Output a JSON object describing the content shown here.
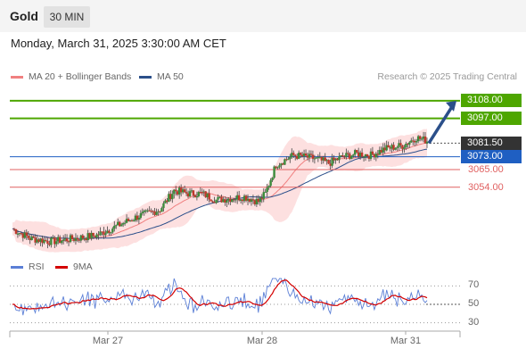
{
  "header": {
    "symbol": "Gold",
    "interval": "30 MIN",
    "datetime": "Monday, March 31, 2025 3:30:00 AM CET"
  },
  "legend": {
    "ma20_label": "MA 20 + Bollinger Bands",
    "ma50_label": "MA 50",
    "credit": "Research © 2025 Trading Central",
    "ma20_color": "#f08080",
    "ma50_color": "#2b4f8a"
  },
  "rsi_legend": {
    "rsi_label": "RSI",
    "ma_label": "9MA",
    "rsi_color": "#5b7fd6",
    "ma_color": "#d40000"
  },
  "chart_data": {
    "type": "candlestick",
    "x_ticks": [
      "Mar 27",
      "Mar 28",
      "Mar 31"
    ],
    "price_range": [
      3012,
      3118
    ],
    "levels": [
      {
        "value": "3108.00",
        "price": 3108,
        "kind": "resistance",
        "color": "#4ea600"
      },
      {
        "value": "3097.00",
        "price": 3097,
        "kind": "resistance",
        "color": "#4ea600"
      },
      {
        "value": "3081.50",
        "price": 3081.5,
        "kind": "last",
        "color": "#333333"
      },
      {
        "value": "3073.00",
        "price": 3073,
        "kind": "pivot",
        "color": "#1f5fc2"
      },
      {
        "value": "3065.00",
        "price": 3065,
        "kind": "support",
        "color": "#e06060"
      },
      {
        "value": "3054.00",
        "price": 3054,
        "kind": "support",
        "color": "#e06060"
      }
    ],
    "rsi": {
      "levels": [
        70,
        50,
        30
      ],
      "range": [
        20,
        80
      ]
    },
    "candle_color_up": "#3c8c3c",
    "candle_color_down": "#c0392b"
  }
}
